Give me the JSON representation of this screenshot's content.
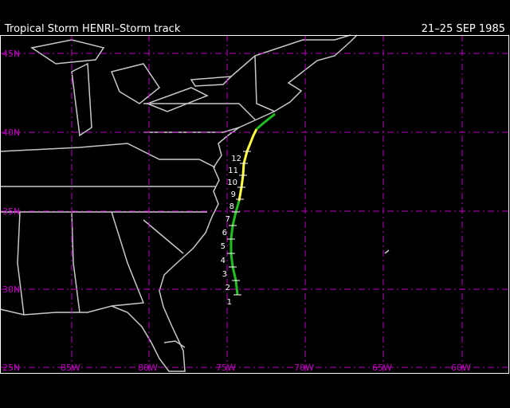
{
  "header": {
    "title": "Tropical Storm HENRI–Storm track",
    "date": "21–25 SEP 1985"
  },
  "map": {
    "lat_labels": [
      "45N",
      "40N",
      "35N",
      "30N",
      "25N"
    ],
    "lon_labels": [
      "85W",
      "80W",
      "75W",
      "70W",
      "65W",
      "60W"
    ],
    "track_labels": [
      "1",
      "2",
      "3",
      "4",
      "5",
      "6",
      "7",
      "8",
      "9",
      "10",
      "11",
      "12"
    ]
  }
}
